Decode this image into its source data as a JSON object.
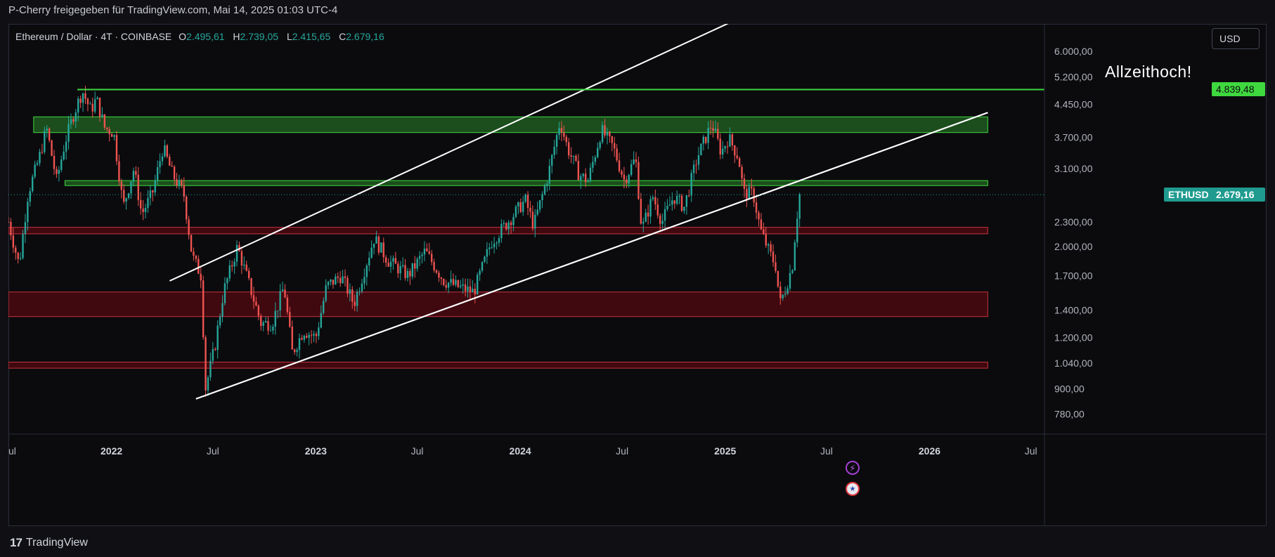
{
  "header": {
    "publisher_text": "P-Cherry freigegeben für TradingView.com, Mai 14, 2025 01:03 UTC-4"
  },
  "legend": {
    "symbol": "Ethereum / Dollar · 4T · COINBASE",
    "o_label": "O",
    "o_value": "2.495,61",
    "h_label": "H",
    "h_value": "2.739,05",
    "l_label": "L",
    "l_value": "2.415,65",
    "c_label": "C",
    "c_value": "2.679,16"
  },
  "currency_button": "USD",
  "annotation": "Allzeithoch!",
  "ath_price_label": "4.839,48",
  "last_price": {
    "symbol": "ETHUSD",
    "value": "2.679,16"
  },
  "footer": {
    "brand": "TradingView",
    "logo_mark": "17"
  },
  "icons": {
    "event_bolt": "lightning-icon",
    "event_flag": "us-flag-icon"
  },
  "colors": {
    "up": "#26a69a",
    "down": "#ef5350",
    "support": "#ef5350",
    "resistance": "#3fd83f",
    "background": "#0b0b0e"
  },
  "chart_data": {
    "type": "candlestick",
    "symbol": "ETHUSD",
    "title": "Ethereum / Dollar · 4T · COINBASE",
    "y_scale": "log",
    "ylim": [
      700,
      7000
    ],
    "y_ticks": [
      6000,
      5200,
      4450,
      3700,
      3100,
      2300,
      2000,
      1700,
      1400,
      1200,
      1040,
      900,
      780
    ],
    "y_tick_labels": [
      "6.000,00",
      "5.200,00",
      "4.450,00",
      "3.700,00",
      "3.100,00",
      "2.300,00",
      "2.000,00",
      "1.700,00",
      "1.400,00",
      "1.200,00",
      "1.040,00",
      "900,00",
      "780,00"
    ],
    "x_range": [
      "2021-07-01",
      "2026-07-24"
    ],
    "x_ticks": [
      {
        "date": "2021-07-01",
        "label": "ul"
      },
      {
        "date": "2022-01-01",
        "label": "2022"
      },
      {
        "date": "2022-07-01",
        "label": "Jul"
      },
      {
        "date": "2023-01-01",
        "label": "2023"
      },
      {
        "date": "2023-07-01",
        "label": "Jul"
      },
      {
        "date": "2024-01-01",
        "label": "2024"
      },
      {
        "date": "2024-07-01",
        "label": "Jul"
      },
      {
        "date": "2025-01-01",
        "label": "2025"
      },
      {
        "date": "2025-07-01",
        "label": "Jul"
      },
      {
        "date": "2026-01-01",
        "label": "2026"
      },
      {
        "date": "2026-07-01",
        "label": "Jul"
      }
    ],
    "last_price": 2679.16,
    "ohlc_last": {
      "open": 2495.61,
      "high": 2739.05,
      "low": 2415.65,
      "close": 2679.16
    },
    "horizontal_lines": [
      {
        "name": "all-time-high",
        "value": 4839.48,
        "label": "Allzeithoch!"
      }
    ],
    "zones": [
      {
        "kind": "resistance",
        "low": 3800,
        "high": 4150,
        "from": "2021-08-15",
        "to": "2026-04-15"
      },
      {
        "kind": "resistance",
        "low": 2820,
        "high": 2900,
        "from": "2021-10-10",
        "to": "2026-04-15"
      },
      {
        "kind": "support",
        "low": 2150,
        "high": 2230,
        "from": "2021-07-01",
        "to": "2026-04-15"
      },
      {
        "kind": "support",
        "low": 1350,
        "high": 1550,
        "from": "2021-07-01",
        "to": "2026-04-15"
      },
      {
        "kind": "support",
        "low": 1010,
        "high": 1045,
        "from": "2021-07-01",
        "to": "2026-04-15"
      }
    ],
    "trend_lines": [
      {
        "name": "channel-upper",
        "from": {
          "date": "2022-04-15",
          "value": 1650
        },
        "to": {
          "date": "2025-03-20",
          "value": 7800
        }
      },
      {
        "name": "channel-lower-1",
        "from": {
          "date": "2022-06-01",
          "value": 850
        },
        "to": {
          "date": "2026-04-15",
          "value": 4250
        }
      },
      {
        "name": "channel-lower-2",
        "from": {
          "date": "2022-06-01",
          "value": 850
        },
        "to": {
          "date": "2026-04-15",
          "value": 4250
        }
      }
    ],
    "price_path": [
      {
        "date": "2021-07-01",
        "value": 2300
      },
      {
        "date": "2021-07-20",
        "value": 1800
      },
      {
        "date": "2021-08-05",
        "value": 2700
      },
      {
        "date": "2021-08-25",
        "value": 3300
      },
      {
        "date": "2021-09-07",
        "value": 3900
      },
      {
        "date": "2021-09-25",
        "value": 2900
      },
      {
        "date": "2021-10-10",
        "value": 3600
      },
      {
        "date": "2021-10-25",
        "value": 4200
      },
      {
        "date": "2021-11-10",
        "value": 4800
      },
      {
        "date": "2021-11-25",
        "value": 4300
      },
      {
        "date": "2021-12-05",
        "value": 4600
      },
      {
        "date": "2021-12-20",
        "value": 3900
      },
      {
        "date": "2022-01-05",
        "value": 3800
      },
      {
        "date": "2022-01-22",
        "value": 2500
      },
      {
        "date": "2022-02-10",
        "value": 3100
      },
      {
        "date": "2022-02-24",
        "value": 2400
      },
      {
        "date": "2022-03-15",
        "value": 2700
      },
      {
        "date": "2022-04-03",
        "value": 3500
      },
      {
        "date": "2022-04-20",
        "value": 3000
      },
      {
        "date": "2022-05-10",
        "value": 2700
      },
      {
        "date": "2022-05-25",
        "value": 1900
      },
      {
        "date": "2022-06-10",
        "value": 1700
      },
      {
        "date": "2022-06-18",
        "value": 900
      },
      {
        "date": "2022-07-05",
        "value": 1150
      },
      {
        "date": "2022-07-20",
        "value": 1550
      },
      {
        "date": "2022-08-14",
        "value": 2000
      },
      {
        "date": "2022-09-05",
        "value": 1600
      },
      {
        "date": "2022-09-25",
        "value": 1300
      },
      {
        "date": "2022-10-15",
        "value": 1300
      },
      {
        "date": "2022-11-05",
        "value": 1600
      },
      {
        "date": "2022-11-20",
        "value": 1100
      },
      {
        "date": "2022-12-10",
        "value": 1250
      },
      {
        "date": "2023-01-01",
        "value": 1200
      },
      {
        "date": "2023-01-20",
        "value": 1600
      },
      {
        "date": "2023-02-15",
        "value": 1700
      },
      {
        "date": "2023-03-10",
        "value": 1450
      },
      {
        "date": "2023-04-15",
        "value": 2100
      },
      {
        "date": "2023-05-10",
        "value": 1850
      },
      {
        "date": "2023-06-15",
        "value": 1700
      },
      {
        "date": "2023-07-15",
        "value": 1950
      },
      {
        "date": "2023-08-18",
        "value": 1650
      },
      {
        "date": "2023-09-10",
        "value": 1600
      },
      {
        "date": "2023-10-10",
        "value": 1550
      },
      {
        "date": "2023-11-10",
        "value": 2050
      },
      {
        "date": "2023-12-10",
        "value": 2300
      },
      {
        "date": "2024-01-10",
        "value": 2600
      },
      {
        "date": "2024-01-25",
        "value": 2250
      },
      {
        "date": "2024-02-20",
        "value": 3000
      },
      {
        "date": "2024-03-12",
        "value": 4050
      },
      {
        "date": "2024-03-25",
        "value": 3500
      },
      {
        "date": "2024-04-15",
        "value": 3000
      },
      {
        "date": "2024-05-01",
        "value": 2900
      },
      {
        "date": "2024-05-25",
        "value": 3850
      },
      {
        "date": "2024-06-15",
        "value": 3500
      },
      {
        "date": "2024-07-05",
        "value": 2900
      },
      {
        "date": "2024-07-25",
        "value": 3300
      },
      {
        "date": "2024-08-05",
        "value": 2200
      },
      {
        "date": "2024-08-25",
        "value": 2650
      },
      {
        "date": "2024-09-10",
        "value": 2300
      },
      {
        "date": "2024-10-01",
        "value": 2650
      },
      {
        "date": "2024-10-20",
        "value": 2500
      },
      {
        "date": "2024-11-12",
        "value": 3300
      },
      {
        "date": "2024-12-08",
        "value": 4000
      },
      {
        "date": "2024-12-25",
        "value": 3400
      },
      {
        "date": "2025-01-07",
        "value": 3700
      },
      {
        "date": "2025-01-25",
        "value": 3300
      },
      {
        "date": "2025-02-03",
        "value": 2700
      },
      {
        "date": "2025-02-20",
        "value": 2700
      },
      {
        "date": "2025-03-05",
        "value": 2200
      },
      {
        "date": "2025-03-20",
        "value": 1950
      },
      {
        "date": "2025-04-01",
        "value": 1800
      },
      {
        "date": "2025-04-09",
        "value": 1450
      },
      {
        "date": "2025-04-20",
        "value": 1600
      },
      {
        "date": "2025-05-01",
        "value": 1800
      },
      {
        "date": "2025-05-08",
        "value": 2300
      },
      {
        "date": "2025-05-14",
        "value": 2679
      }
    ]
  }
}
